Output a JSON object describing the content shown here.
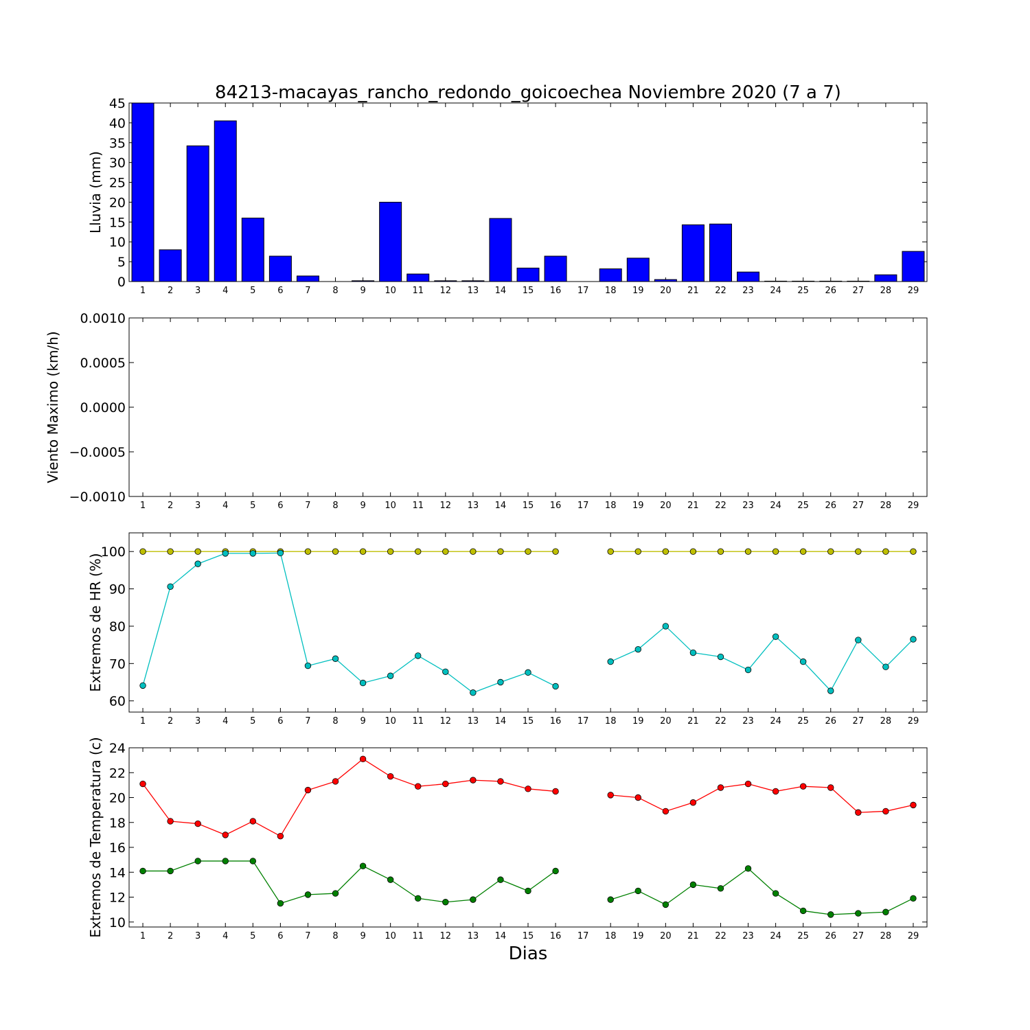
{
  "title": "84213-macayas_rancho_redondo_goicoechea Noviembre 2020  (7 a 7)",
  "xlabel": "Dias",
  "colors": {
    "rain": "#0000ff",
    "hr_max": "#bfbf00",
    "hr_min": "#00bfbf",
    "temp_max": "#ff0000",
    "temp_min": "#008000",
    "frame": "#000000"
  },
  "chart_data": [
    {
      "type": "bar",
      "ylabel": "Lluvia (mm)",
      "ylim": [
        0,
        45
      ],
      "yticks": [
        0,
        5,
        10,
        15,
        20,
        25,
        30,
        35,
        40,
        45
      ],
      "x": [
        1,
        2,
        3,
        4,
        5,
        6,
        7,
        8,
        9,
        10,
        11,
        12,
        13,
        14,
        15,
        16,
        17,
        18,
        19,
        20,
        21,
        22,
        23,
        24,
        25,
        26,
        27,
        28,
        29
      ],
      "series": [
        {
          "values": [
            45,
            8,
            34.2,
            40.5,
            16,
            6.4,
            1.4,
            0,
            0.2,
            20,
            1.9,
            0.2,
            0.2,
            15.9,
            3.4,
            6.4,
            0,
            3.2,
            5.9,
            0.5,
            14.3,
            14.5,
            2.4,
            0.1,
            0.1,
            0.1,
            0.1,
            1.7,
            7.6
          ]
        }
      ]
    },
    {
      "type": "line",
      "ylabel": "Viento Maximo (km/h)",
      "ylim": [
        -0.001,
        0.001
      ],
      "yticks": [
        -0.001,
        -0.0005,
        0,
        0.0005,
        0.001
      ],
      "ytick_labels": [
        "−0.0010",
        "−0.0005",
        "0.0000",
        "0.0005",
        "0.0010"
      ],
      "x": [
        1,
        2,
        3,
        4,
        5,
        6,
        7,
        8,
        9,
        10,
        11,
        12,
        13,
        14,
        15,
        16,
        17,
        18,
        19,
        20,
        21,
        22,
        23,
        24,
        25,
        26,
        27,
        28,
        29
      ],
      "series": []
    },
    {
      "type": "line",
      "ylabel": "Extremos de HR (%)",
      "ylim": [
        57,
        105
      ],
      "yticks": [
        60,
        70,
        80,
        90,
        100
      ],
      "x": [
        1,
        2,
        3,
        4,
        5,
        6,
        7,
        8,
        9,
        10,
        11,
        12,
        13,
        14,
        15,
        16,
        17,
        18,
        19,
        20,
        21,
        22,
        23,
        24,
        25,
        26,
        27,
        28,
        29
      ],
      "series": [
        {
          "values": [
            100,
            100,
            100,
            100,
            100,
            100,
            100,
            100,
            100,
            100,
            100,
            100,
            100,
            100,
            100,
            100,
            null,
            100,
            100,
            100,
            100,
            100,
            100,
            100,
            100,
            100,
            100,
            100,
            100
          ]
        },
        {
          "values": [
            64.1,
            90.6,
            96.7,
            99.5,
            99.5,
            99.6,
            69.4,
            71.3,
            64.8,
            66.7,
            72.1,
            67.8,
            62.2,
            65.0,
            67.6,
            63.9,
            null,
            70.5,
            73.8,
            80.0,
            72.9,
            71.8,
            68.3,
            77.2,
            70.5,
            62.7,
            76.3,
            69.1,
            76.5
          ]
        }
      ]
    },
    {
      "type": "line",
      "ylabel": "Extremos de Temperatura (c)",
      "ylim": [
        9.6,
        24
      ],
      "yticks": [
        10,
        12,
        14,
        16,
        18,
        20,
        22,
        24
      ],
      "x": [
        1,
        2,
        3,
        4,
        5,
        6,
        7,
        8,
        9,
        10,
        11,
        12,
        13,
        14,
        15,
        16,
        17,
        18,
        19,
        20,
        21,
        22,
        23,
        24,
        25,
        26,
        27,
        28,
        29
      ],
      "series": [
        {
          "values": [
            21.1,
            18.1,
            17.9,
            17.0,
            18.1,
            16.9,
            20.6,
            21.3,
            23.1,
            21.7,
            20.9,
            21.1,
            21.4,
            21.3,
            20.7,
            20.5,
            null,
            20.2,
            20.0,
            18.9,
            19.6,
            20.8,
            21.1,
            20.5,
            20.9,
            20.8,
            18.8,
            18.9,
            19.4
          ]
        },
        {
          "values": [
            14.1,
            14.1,
            14.9,
            14.9,
            14.9,
            11.5,
            12.2,
            12.3,
            14.5,
            13.4,
            11.9,
            11.6,
            11.8,
            13.4,
            12.5,
            14.1,
            null,
            11.8,
            12.5,
            11.4,
            13.0,
            12.7,
            14.3,
            12.3,
            10.9,
            10.6,
            10.7,
            10.8,
            11.9
          ]
        }
      ]
    }
  ]
}
